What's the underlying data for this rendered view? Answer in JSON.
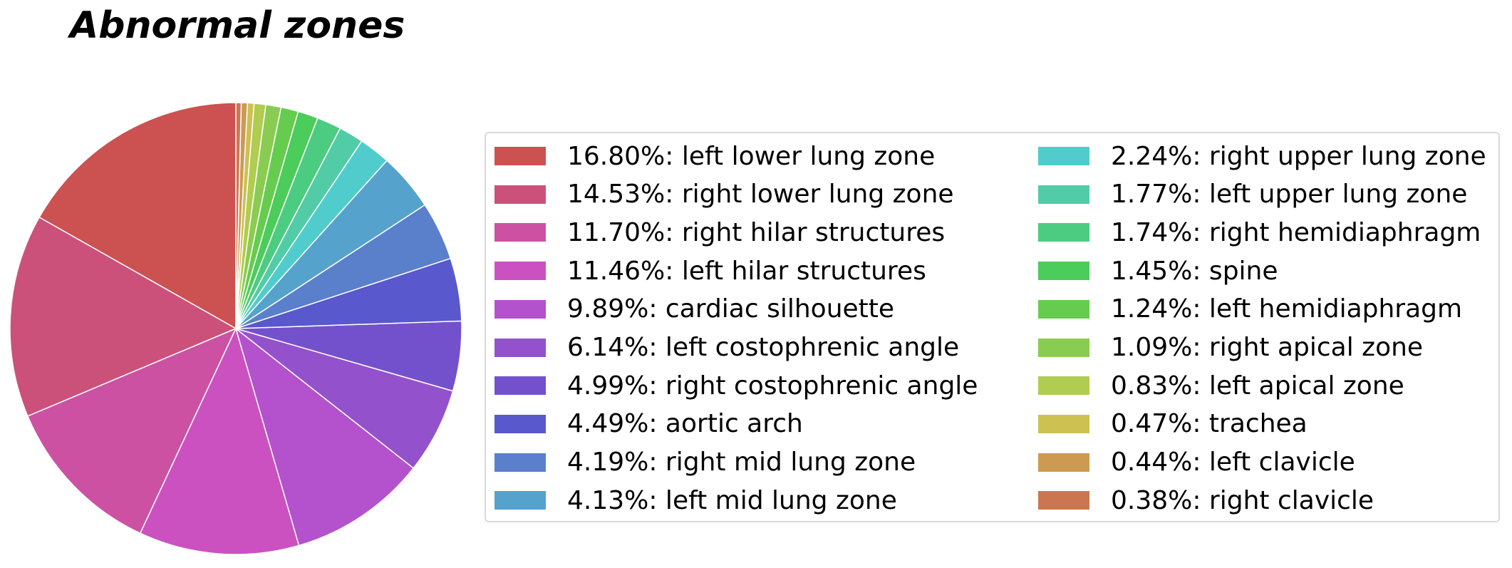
{
  "chart_data": {
    "type": "pie",
    "title": "Abnormal zones",
    "slices": [
      {
        "label": "16.80%: left lower lung zone",
        "value": 16.8,
        "color": "#cc5151"
      },
      {
        "label": "14.53%: right lower lung zone",
        "value": 14.53,
        "color": "#cc517a"
      },
      {
        "label": "11.70%: right hilar structures",
        "value": 11.7,
        "color": "#cc51a3"
      },
      {
        "label": "11.46%: left hilar structures",
        "value": 11.46,
        "color": "#cc51c0"
      },
      {
        "label": "9.89%: cardiac silhouette",
        "value": 9.89,
        "color": "#b451cc"
      },
      {
        "label": "6.14%: left costophrenic angle",
        "value": 6.14,
        "color": "#9451cc"
      },
      {
        "label": "4.99%: right costophrenic angle",
        "value": 4.99,
        "color": "#7451cc"
      },
      {
        "label": "4.49%: aortic arch",
        "value": 4.49,
        "color": "#5958cc"
      },
      {
        "label": "4.19%: right mid lung zone",
        "value": 4.19,
        "color": "#5a80cc"
      },
      {
        "label": "4.13%: left mid lung zone",
        "value": 4.13,
        "color": "#55a3cc"
      },
      {
        "label": "2.24%: right upper lung zone",
        "value": 2.24,
        "color": "#51cccc"
      },
      {
        "label": "1.77%: left upper lung zone",
        "value": 1.77,
        "color": "#51cca6"
      },
      {
        "label": "1.74%: right hemidiaphragm",
        "value": 1.74,
        "color": "#4ccc80"
      },
      {
        "label": "1.45%: spine",
        "value": 1.45,
        "color": "#4ccc5a"
      },
      {
        "label": "1.24%: left hemidiaphragm",
        "value": 1.24,
        "color": "#66cc4f"
      },
      {
        "label": "1.09%: right apical zone",
        "value": 1.09,
        "color": "#8acc51"
      },
      {
        "label": "0.83%: left apical zone",
        "value": 0.83,
        "color": "#b0cc51"
      },
      {
        "label": "0.47%: trachea",
        "value": 0.47,
        "color": "#ccc151"
      },
      {
        "label": "0.44%: left clavicle",
        "value": 0.44,
        "color": "#cc9a51"
      },
      {
        "label": "0.38%: right clavicle",
        "value": 0.38,
        "color": "#cc7651"
      }
    ],
    "start_angle": "top",
    "direction": "counterclockwise",
    "slice_edge_color": "#ffffff",
    "legend": {
      "placement": "right",
      "columns": 2
    }
  }
}
